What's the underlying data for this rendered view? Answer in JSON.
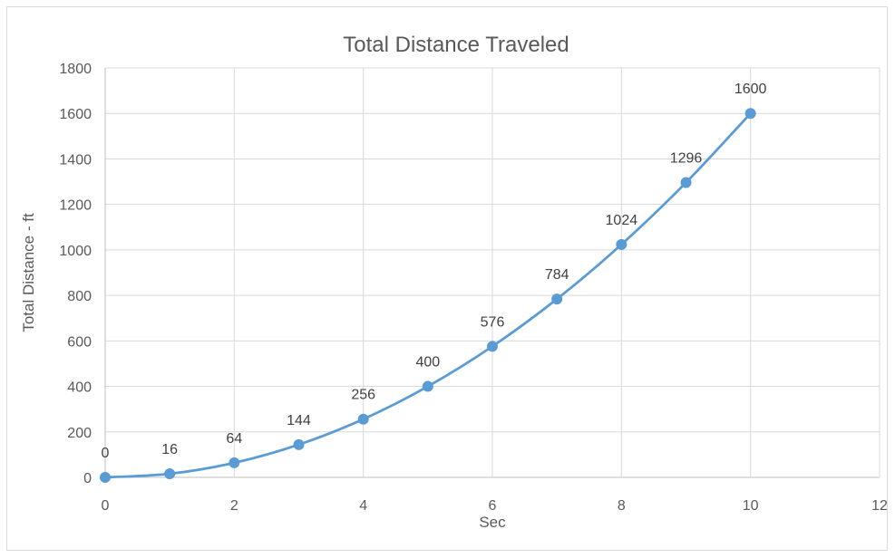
{
  "chart_data": {
    "type": "scatter",
    "title": "Total Distance Traveled",
    "xlabel": "Sec",
    "ylabel": "Total Distance - ft",
    "xlim": [
      0,
      12
    ],
    "ylim": [
      0,
      1800
    ],
    "xticks": [
      0,
      2,
      4,
      6,
      8,
      10,
      12
    ],
    "yticks": [
      0,
      200,
      400,
      600,
      800,
      1000,
      1200,
      1400,
      1600,
      1800
    ],
    "grid": true,
    "legend": "none",
    "series": [
      {
        "x": [
          0,
          1,
          2,
          3,
          4,
          5,
          6,
          7,
          8,
          9,
          10
        ],
        "y": [
          0,
          16,
          64,
          144,
          256,
          400,
          576,
          784,
          1024,
          1296,
          1600
        ],
        "data_labels": [
          "0",
          "16",
          "64",
          "144",
          "256",
          "400",
          "576",
          "784",
          "1024",
          "1296",
          "1600"
        ],
        "color": "#5b9bd5",
        "line": "smooth",
        "marker": "circle"
      }
    ]
  }
}
